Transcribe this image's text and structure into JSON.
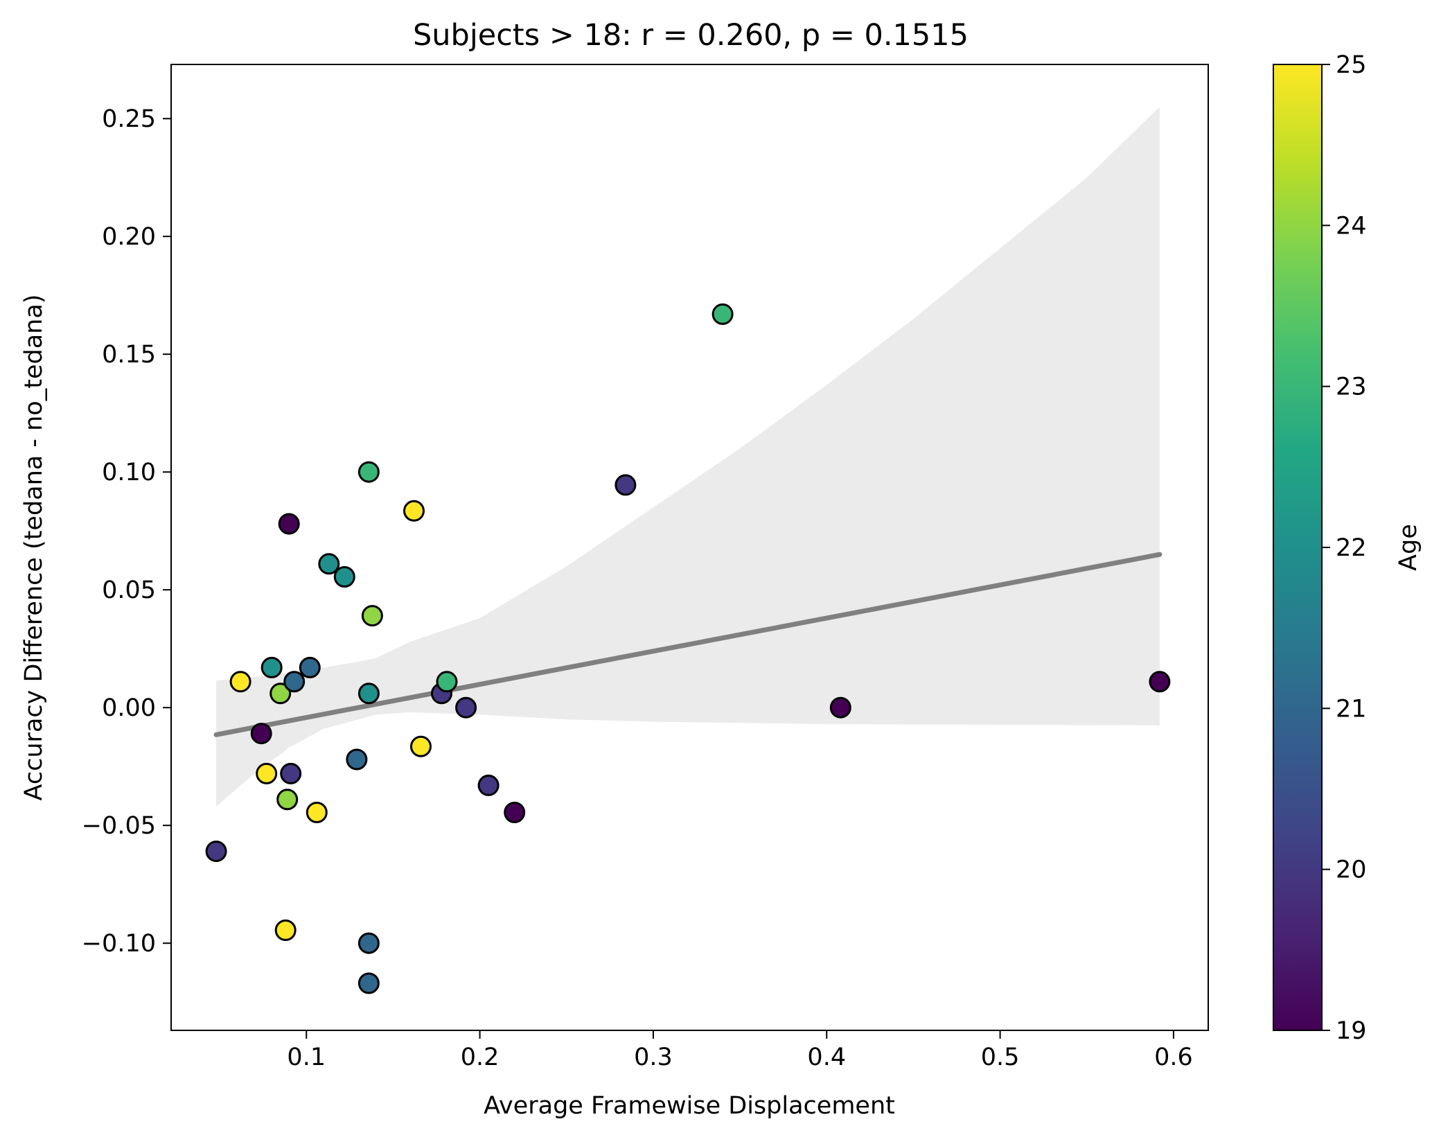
{
  "chart_data": {
    "type": "scatter",
    "title": "Subjects > 18: r = 0.260, p = 0.1515",
    "xlabel": "Average Framewise Displacement",
    "ylabel": "Accuracy Difference (tedana - no_tedana)",
    "xlim": [
      0.022,
      0.62
    ],
    "ylim": [
      -0.137,
      0.273
    ],
    "xticks": [
      0.1,
      0.2,
      0.3,
      0.4,
      0.5,
      0.6
    ],
    "xtick_labels": [
      "0.1",
      "0.2",
      "0.3",
      "0.4",
      "0.5",
      "0.6"
    ],
    "yticks": [
      -0.1,
      -0.05,
      0.0,
      0.05,
      0.1,
      0.15,
      0.2,
      0.25
    ],
    "ytick_labels": [
      "−0.10",
      "−0.05",
      "0.00",
      "0.05",
      "0.10",
      "0.15",
      "0.20",
      "0.25"
    ],
    "grid": false,
    "colorbar": {
      "label": "Age",
      "colormap": "viridis",
      "min": 19,
      "max": 25,
      "ticks": [
        19,
        20,
        21,
        22,
        23,
        24,
        25
      ],
      "tick_labels": [
        "19",
        "20",
        "21",
        "22",
        "23",
        "24",
        "25"
      ]
    },
    "regression": {
      "line": [
        [
          0.048,
          -0.0115
        ],
        [
          0.592,
          0.065
        ]
      ],
      "line_color": "#808080",
      "ci_color": "#ebebeb",
      "ci_x": [
        0.048,
        0.07,
        0.09,
        0.11,
        0.13,
        0.14,
        0.16,
        0.2,
        0.25,
        0.3,
        0.35,
        0.4,
        0.45,
        0.5,
        0.55,
        0.592
      ],
      "ci_upper": [
        0.0115,
        0.013,
        0.015,
        0.017,
        0.0195,
        0.021,
        0.028,
        0.038,
        0.06,
        0.085,
        0.11,
        0.137,
        0.165,
        0.195,
        0.225,
        0.255
      ],
      "ci_lower": [
        -0.042,
        -0.028,
        -0.017,
        -0.009,
        -0.005,
        -0.003,
        -0.002,
        -0.003,
        -0.005,
        -0.006,
        -0.0065,
        -0.007,
        -0.0072,
        -0.0073,
        -0.0074,
        -0.0075
      ]
    },
    "points": [
      {
        "x": 0.048,
        "y": -0.061,
        "age": 20
      },
      {
        "x": 0.062,
        "y": 0.011,
        "age": 25
      },
      {
        "x": 0.074,
        "y": -0.011,
        "age": 19
      },
      {
        "x": 0.077,
        "y": -0.028,
        "age": 25
      },
      {
        "x": 0.08,
        "y": 0.017,
        "age": 22
      },
      {
        "x": 0.085,
        "y": 0.006,
        "age": 24
      },
      {
        "x": 0.088,
        "y": -0.0945,
        "age": 25
      },
      {
        "x": 0.089,
        "y": -0.039,
        "age": 24
      },
      {
        "x": 0.09,
        "y": 0.078,
        "age": 19
      },
      {
        "x": 0.091,
        "y": -0.028,
        "age": 20
      },
      {
        "x": 0.093,
        "y": 0.011,
        "age": 21
      },
      {
        "x": 0.102,
        "y": 0.017,
        "age": 21
      },
      {
        "x": 0.106,
        "y": -0.0445,
        "age": 25
      },
      {
        "x": 0.113,
        "y": 0.061,
        "age": 22
      },
      {
        "x": 0.122,
        "y": 0.0555,
        "age": 22
      },
      {
        "x": 0.129,
        "y": -0.022,
        "age": 21
      },
      {
        "x": 0.136,
        "y": 0.1,
        "age": 23
      },
      {
        "x": 0.136,
        "y": 0.006,
        "age": 22
      },
      {
        "x": 0.136,
        "y": -0.1,
        "age": 21
      },
      {
        "x": 0.136,
        "y": -0.117,
        "age": 21
      },
      {
        "x": 0.138,
        "y": 0.039,
        "age": 24
      },
      {
        "x": 0.162,
        "y": 0.0835,
        "age": 25
      },
      {
        "x": 0.166,
        "y": -0.0165,
        "age": 25
      },
      {
        "x": 0.178,
        "y": 0.006,
        "age": 20
      },
      {
        "x": 0.181,
        "y": 0.011,
        "age": 23
      },
      {
        "x": 0.192,
        "y": 0.0,
        "age": 20
      },
      {
        "x": 0.205,
        "y": -0.033,
        "age": 20
      },
      {
        "x": 0.22,
        "y": -0.0445,
        "age": 19
      },
      {
        "x": 0.284,
        "y": 0.0945,
        "age": 20
      },
      {
        "x": 0.34,
        "y": 0.167,
        "age": 23
      },
      {
        "x": 0.408,
        "y": 0.0,
        "age": 19
      },
      {
        "x": 0.592,
        "y": 0.011,
        "age": 19
      }
    ]
  }
}
